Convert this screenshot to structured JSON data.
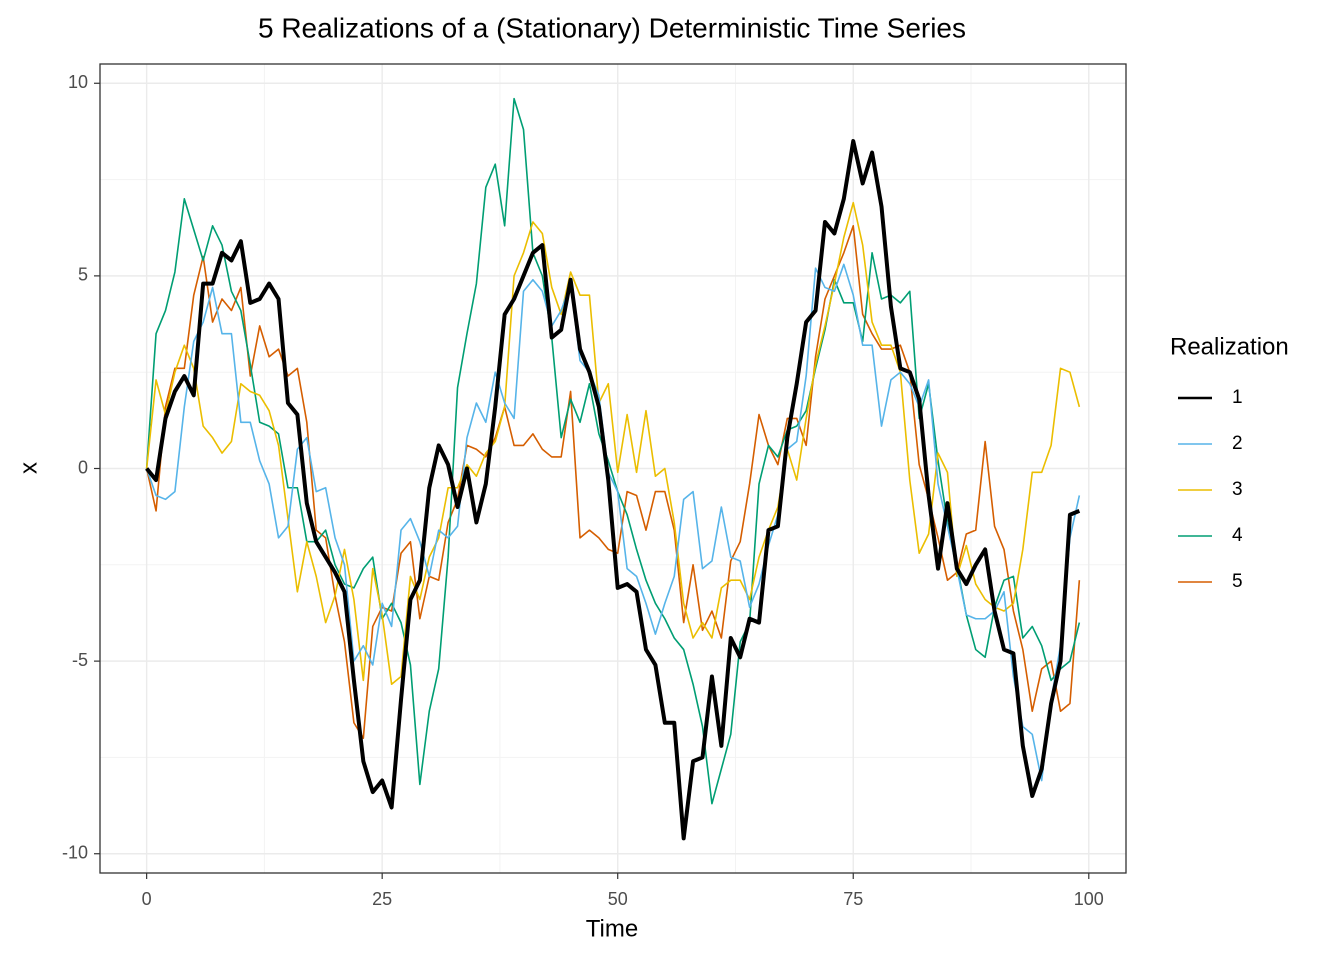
{
  "chart_data": {
    "type": "line",
    "title": "5 Realizations of a (Stationary) Deterministic Time Series",
    "x_label": "Time",
    "y_label": "x",
    "legend_title": "Realization",
    "legend_position": "right",
    "x": [
      0,
      1,
      2,
      3,
      4,
      5,
      6,
      7,
      8,
      9,
      10,
      11,
      12,
      13,
      14,
      15,
      16,
      17,
      18,
      19,
      20,
      21,
      22,
      23,
      24,
      25,
      26,
      27,
      28,
      29,
      30,
      31,
      32,
      33,
      34,
      35,
      36,
      37,
      38,
      39,
      40,
      41,
      42,
      43,
      44,
      45,
      46,
      47,
      48,
      49,
      50,
      51,
      52,
      53,
      54,
      55,
      56,
      57,
      58,
      59,
      60,
      61,
      62,
      63,
      64,
      65,
      66,
      67,
      68,
      69,
      70,
      71,
      72,
      73,
      74,
      75,
      76,
      77,
      78,
      79,
      80,
      81,
      82,
      83,
      84,
      85,
      86,
      87,
      88,
      89,
      90,
      91,
      92,
      93,
      94,
      95,
      96,
      97,
      98,
      99
    ],
    "series": [
      {
        "name": "1",
        "color": "#000000",
        "width": 4,
        "values": [
          0,
          -0.3,
          1.3,
          2.0,
          2.4,
          1.9,
          4.8,
          4.8,
          5.6,
          5.4,
          5.9,
          4.3,
          4.4,
          4.8,
          4.4,
          1.7,
          1.4,
          -0.9,
          -1.9,
          -2.3,
          -2.7,
          -3.2,
          -5.5,
          -7.6,
          -8.4,
          -8.1,
          -8.8,
          -6.0,
          -3.4,
          -2.9,
          -0.5,
          0.6,
          0.1,
          -1.0,
          0.0,
          -1.4,
          -0.4,
          1.6,
          4.0,
          4.4,
          5.0,
          5.6,
          5.8,
          3.4,
          3.6,
          4.9,
          3.1,
          2.5,
          1.6,
          -0.3,
          -3.1,
          -3.0,
          -3.2,
          -4.7,
          -5.1,
          -6.6,
          -6.6,
          -9.6,
          -7.6,
          -7.5,
          -5.4,
          -7.2,
          -4.4,
          -4.9,
          -3.9,
          -4.0,
          -1.6,
          -1.5,
          0.8,
          2.2,
          3.8,
          4.1,
          6.4,
          6.1,
          7.0,
          8.5,
          7.4,
          8.2,
          6.8,
          4.2,
          2.6,
          2.5,
          1.8,
          -0.7,
          -2.6,
          -0.9,
          -2.6,
          -3.0,
          -2.5,
          -2.1,
          -3.7,
          -4.7,
          -4.8,
          -7.2,
          -8.5,
          -7.8,
          -6.1,
          -5.0,
          -1.2,
          -1.1
        ]
      },
      {
        "name": "2",
        "color": "#56B4E9",
        "width": 1.6,
        "values": [
          0,
          -0.7,
          -0.8,
          -0.6,
          1.6,
          3.3,
          3.8,
          4.7,
          3.5,
          3.5,
          1.2,
          1.2,
          0.2,
          -0.4,
          -1.8,
          -1.5,
          0.5,
          0.8,
          -0.6,
          -0.5,
          -1.8,
          -2.5,
          -5.0,
          -4.6,
          -5.1,
          -3.5,
          -4.1,
          -1.6,
          -1.3,
          -1.9,
          -2.8,
          -1.6,
          -1.8,
          -1.5,
          0.8,
          1.7,
          1.2,
          2.5,
          1.7,
          1.3,
          4.6,
          4.9,
          4.6,
          3.7,
          4.1,
          4.8,
          2.8,
          2.5,
          1.9,
          -0.1,
          -0.6,
          -2.6,
          -2.8,
          -3.5,
          -4.3,
          -3.5,
          -2.8,
          -0.8,
          -0.6,
          -2.6,
          -2.4,
          -1.0,
          -2.3,
          -2.4,
          -3.6,
          -3.0,
          -2.0,
          -1.2,
          0.5,
          0.7,
          2.4,
          5.2,
          4.7,
          4.6,
          5.3,
          4.5,
          3.2,
          3.2,
          1.1,
          2.3,
          2.5,
          2.2,
          1.6,
          2.3,
          -0.4,
          -1.5,
          -2.6,
          -3.8,
          -3.9,
          -3.9,
          -3.7,
          -3.2,
          -5.4,
          -6.7,
          -6.9,
          -8.1,
          -6.0,
          -4.6,
          -1.8,
          -0.7
        ]
      },
      {
        "name": "3",
        "color": "#EBBE00",
        "width": 1.6,
        "values": [
          0,
          2.3,
          1.4,
          2.5,
          3.2,
          2.6,
          1.1,
          0.8,
          0.4,
          0.7,
          2.2,
          2.0,
          1.9,
          1.5,
          0.6,
          -1.3,
          -3.2,
          -1.9,
          -2.8,
          -4.0,
          -3.3,
          -2.1,
          -3.4,
          -5.5,
          -2.6,
          -3.8,
          -5.6,
          -5.4,
          -2.8,
          -3.4,
          -2.3,
          -1.8,
          -0.5,
          -0.5,
          0.1,
          -0.2,
          0.4,
          0.7,
          1.6,
          5.0,
          5.6,
          6.4,
          6.1,
          4.7,
          4.0,
          5.1,
          4.5,
          4.5,
          1.7,
          2.2,
          -0.1,
          1.4,
          -0.1,
          1.5,
          -0.2,
          0.0,
          -1.4,
          -3.5,
          -4.4,
          -4.0,
          -4.4,
          -3.1,
          -2.9,
          -2.9,
          -3.4,
          -2.3,
          -1.6,
          -1.0,
          0.5,
          -0.3,
          1.3,
          2.7,
          3.7,
          4.8,
          6.0,
          6.9,
          5.8,
          3.8,
          3.2,
          3.2,
          2.5,
          -0.3,
          -2.2,
          -1.7,
          0.4,
          -0.1,
          -2.8,
          -2.0,
          -3.0,
          -3.4,
          -3.6,
          -3.7,
          -3.5,
          -2.1,
          -0.1,
          -0.1,
          0.6,
          2.6,
          2.5,
          1.6
        ]
      },
      {
        "name": "4",
        "color": "#009E73",
        "width": 1.6,
        "values": [
          0,
          3.5,
          4.1,
          5.1,
          7.0,
          6.2,
          5.4,
          6.3,
          5.8,
          4.6,
          4.1,
          2.7,
          1.2,
          1.1,
          0.9,
          -0.5,
          -0.5,
          -1.9,
          -1.9,
          -1.6,
          -2.5,
          -3.0,
          -3.1,
          -2.6,
          -2.3,
          -3.9,
          -3.5,
          -4.0,
          -5.1,
          -8.2,
          -6.3,
          -5.2,
          -2.3,
          2.1,
          3.5,
          4.8,
          7.3,
          7.9,
          6.3,
          9.6,
          8.8,
          5.6,
          5.0,
          3.4,
          0.8,
          1.8,
          1.2,
          2.2,
          0.9,
          0.2,
          -0.6,
          -1.2,
          -2.1,
          -2.9,
          -3.5,
          -3.9,
          -4.4,
          -4.7,
          -5.6,
          -6.7,
          -8.7,
          -7.8,
          -6.9,
          -4.5,
          -4.0,
          -0.4,
          0.6,
          0.3,
          1.0,
          1.1,
          1.5,
          2.6,
          3.6,
          4.9,
          4.3,
          4.3,
          3.3,
          5.6,
          4.4,
          4.5,
          4.3,
          4.6,
          1.3,
          2.2,
          0.2,
          -1.4,
          -2.5,
          -3.8,
          -4.7,
          -4.9,
          -3.6,
          -2.9,
          -2.8,
          -4.4,
          -4.1,
          -4.6,
          -5.5,
          -5.2,
          -5.0,
          -4.0
        ]
      },
      {
        "name": "5",
        "color": "#D55E00",
        "width": 1.6,
        "values": [
          0,
          -1.1,
          1.6,
          2.6,
          2.6,
          4.5,
          5.5,
          3.8,
          4.4,
          4.1,
          4.7,
          2.4,
          3.7,
          2.9,
          3.1,
          2.4,
          2.6,
          1.2,
          -1.6,
          -1.8,
          -3.3,
          -4.5,
          -6.6,
          -7.0,
          -4.1,
          -3.6,
          -3.7,
          -2.2,
          -1.9,
          -3.9,
          -2.8,
          -2.9,
          -1.4,
          -0.8,
          0.6,
          0.5,
          0.3,
          0.8,
          1.6,
          0.6,
          0.6,
          0.9,
          0.5,
          0.3,
          0.3,
          2.0,
          -1.8,
          -1.6,
          -1.8,
          -2.1,
          -2.2,
          -0.6,
          -0.7,
          -1.6,
          -0.6,
          -0.6,
          -1.6,
          -4.0,
          -2.5,
          -4.2,
          -3.7,
          -4.4,
          -2.4,
          -1.9,
          -0.4,
          1.4,
          0.6,
          0.1,
          1.3,
          1.3,
          0.6,
          2.9,
          4.4,
          5.0,
          5.6,
          6.3,
          4.0,
          3.5,
          3.1,
          3.1,
          3.2,
          2.5,
          0.1,
          -0.8,
          -1.8,
          -2.9,
          -2.7,
          -1.7,
          -1.6,
          0.7,
          -1.5,
          -2.1,
          -3.7,
          -4.7,
          -6.3,
          -5.2,
          -5.0,
          -6.3,
          -6.1,
          -2.9
        ]
      }
    ],
    "xlim": [
      -4.95,
      103.95
    ],
    "ylim": [
      -10.5,
      10.5
    ],
    "xticks": [
      0,
      25,
      50,
      75,
      100
    ],
    "yticks": [
      -10,
      -5,
      0,
      5,
      10
    ],
    "x_minor_breaks": [
      12.5,
      37.5,
      62.5,
      87.5
    ],
    "y_minor_breaks": [
      -7.5,
      -2.5,
      2.5,
      7.5
    ],
    "grid": true
  }
}
